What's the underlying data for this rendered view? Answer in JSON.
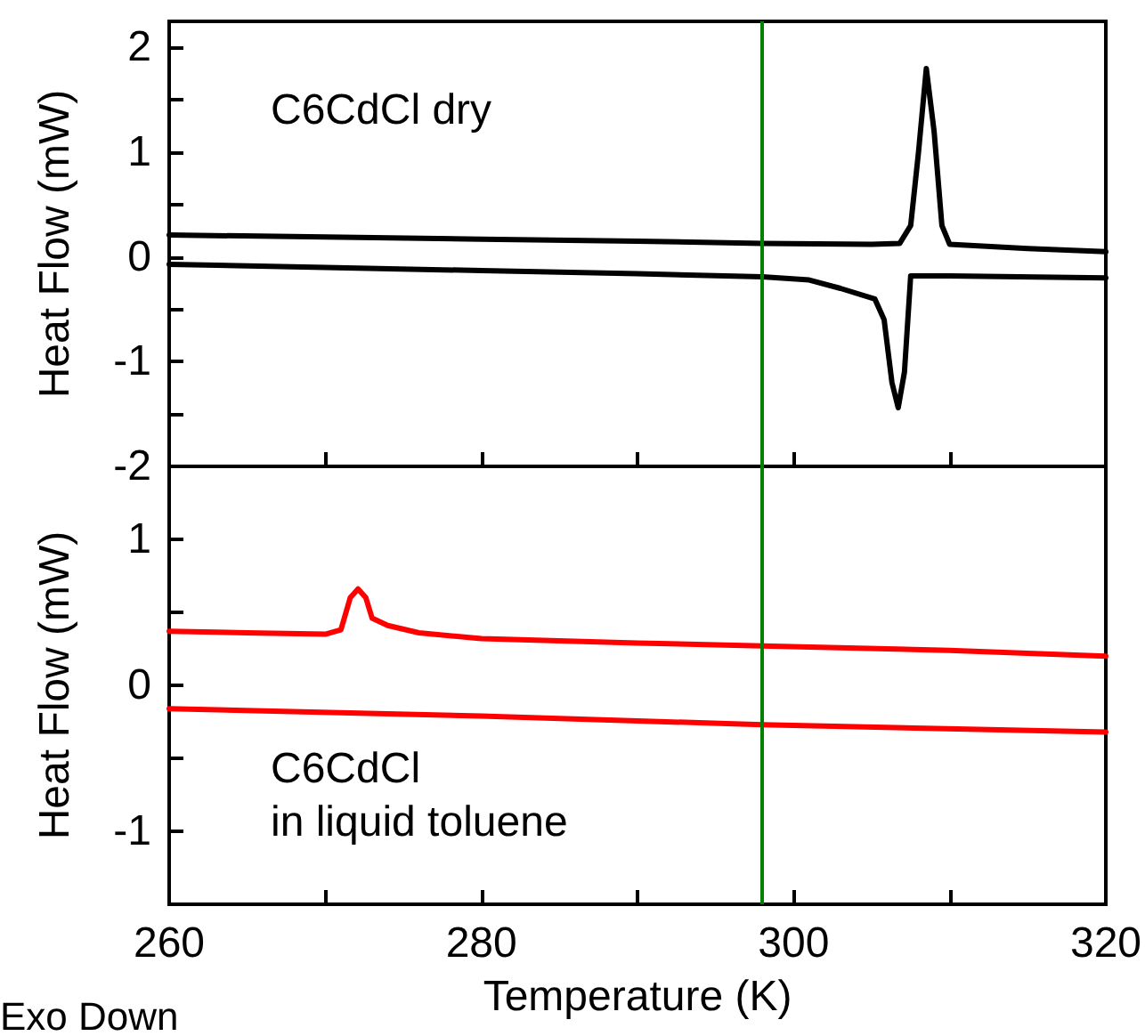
{
  "chart_data": [
    {
      "type": "line",
      "ylabel": "Heat Flow (mW)",
      "annotations": [
        "C6CdCl dry"
      ],
      "xlim": [
        260,
        320
      ],
      "xticks": [
        260,
        {
          "value": 270,
          "label": null
        },
        280,
        {
          "value": 290,
          "label": null
        },
        300,
        {
          "value": 310,
          "label": null
        },
        320
      ],
      "ylim": [
        -2,
        2.25
      ],
      "yticks": [
        -2,
        {
          "value": -1.5,
          "label": null
        },
        -1,
        {
          "value": -0.5,
          "label": null
        },
        0,
        {
          "value": 0.5,
          "label": null
        },
        1,
        {
          "value": 1.5,
          "label": null
        },
        2
      ],
      "tick_labels": "y",
      "ref_lines": [
        {
          "axis": "x",
          "value": 298,
          "color": "#008000"
        }
      ],
      "series": [
        {
          "color": "#000000",
          "x": [
            260,
            270,
            280,
            290,
            298,
            305,
            306.8,
            307.5,
            308,
            308.5,
            309,
            309.5,
            310,
            315,
            320
          ],
          "values": [
            0.21,
            0.19,
            0.17,
            0.15,
            0.13,
            0.12,
            0.13,
            0.3,
            1.0,
            1.8,
            1.2,
            0.3,
            0.12,
            0.08,
            0.05
          ]
        },
        {
          "color": "#000000",
          "x": [
            260,
            270,
            280,
            290,
            298,
            301,
            303,
            305.2,
            305.8,
            306.3,
            306.7,
            307.1,
            307.5,
            310,
            320
          ],
          "values": [
            -0.07,
            -0.1,
            -0.13,
            -0.16,
            -0.19,
            -0.22,
            -0.3,
            -0.4,
            -0.6,
            -1.2,
            -1.44,
            -1.1,
            -0.18,
            -0.18,
            -0.2
          ]
        }
      ]
    },
    {
      "type": "line",
      "xlabel": "Temperature (K)",
      "ylabel": "Heat Flow (mW)",
      "annotations": [
        "C6CdCl\nin liquid toluene",
        "Exo Down"
      ],
      "xlim": [
        260,
        320
      ],
      "xticks": [
        260,
        {
          "value": 270,
          "label": null
        },
        280,
        {
          "value": 290,
          "label": null
        },
        300,
        {
          "value": 310,
          "label": null
        },
        320
      ],
      "ylim": [
        -1.5,
        1.5
      ],
      "yticks": [
        {
          "value": -1.5,
          "label": null
        },
        -1,
        {
          "value": -0.5,
          "label": null
        },
        0,
        {
          "value": 0.5,
          "label": null
        },
        1,
        {
          "value": 1.5,
          "label": null
        }
      ],
      "ref_lines": [
        {
          "axis": "x",
          "value": 298,
          "color": "#008000"
        }
      ],
      "series": [
        {
          "color": "#ff0000",
          "x": [
            260,
            265,
            270,
            271,
            271.6,
            272.1,
            272.6,
            273,
            274,
            276,
            280,
            290,
            298,
            310,
            320
          ],
          "values": [
            0.37,
            0.36,
            0.35,
            0.38,
            0.6,
            0.66,
            0.6,
            0.46,
            0.41,
            0.36,
            0.32,
            0.29,
            0.27,
            0.24,
            0.2
          ]
        },
        {
          "color": "#ff0000",
          "x": [
            260,
            280,
            298,
            320
          ],
          "values": [
            -0.16,
            -0.21,
            -0.27,
            -0.32
          ]
        }
      ]
    }
  ]
}
